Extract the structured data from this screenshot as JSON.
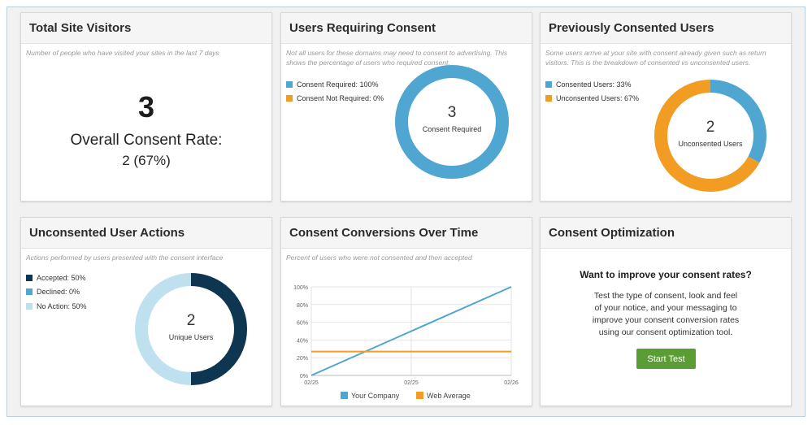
{
  "colors": {
    "blue": "#4fa6d0",
    "orange": "#f39c24",
    "navy": "#0f3650",
    "mid_blue": "#4fa6d0",
    "light_blue": "#bfe0ef",
    "green_button": "#5a9d35"
  },
  "visitors": {
    "title": "Total Site Visitors",
    "description": "Number of people who have visited your sites in the last 7 days",
    "count": "3",
    "rate_label": "Overall Consent Rate:",
    "rate_value": "2 (67%)"
  },
  "requiring": {
    "title": "Users Requiring Consent",
    "description": "Not all users for these domains may need to consent to advertising. This shows the percentage of users who required consent.",
    "legend": [
      {
        "label": "Consent Required: 100%",
        "color": "#4fa6d0"
      },
      {
        "label": "Consent Not Required: 0%",
        "color": "#f39c24"
      }
    ],
    "center_value": "3",
    "center_label": "Consent Required",
    "slices": [
      1.0,
      0.0
    ]
  },
  "previously": {
    "title": "Previously Consented Users",
    "description": "Some users arrive at your site with consent already given such as return visitors. This is the breakdown of consented vs unconsented users.",
    "legend": [
      {
        "label": "Consented Users: 33%",
        "color": "#4fa6d0"
      },
      {
        "label": "Unconsented Users: 67%",
        "color": "#f39c24"
      }
    ],
    "center_value": "2",
    "center_label": "Unconsented Users",
    "slices": [
      0.33,
      0.67
    ]
  },
  "actions": {
    "title": "Unconsented User Actions",
    "description": "Actions performed by users presented with the consent interface",
    "legend": [
      {
        "label": "Accepted: 50%",
        "color": "#0f3650"
      },
      {
        "label": "Declined: 0%",
        "color": "#4fa6d0"
      },
      {
        "label": "No Action: 50%",
        "color": "#bfe0ef"
      }
    ],
    "center_value": "2",
    "center_label": "Unique Users",
    "slices": [
      0.5,
      0.0,
      0.5
    ]
  },
  "conversions": {
    "title": "Consent Conversions Over Time",
    "description": "Percent of users who were not consented and then accepted"
  },
  "chart_data": {
    "type": "line",
    "x": [
      "02/25",
      "02/25",
      "02/26"
    ],
    "y_ticks": [
      "0%",
      "20%",
      "40%",
      "60%",
      "80%",
      "100%"
    ],
    "ylim": [
      0,
      100
    ],
    "grid": true,
    "legend_position": "bottom",
    "series": [
      {
        "name": "Your Company",
        "color": "#4fa6d0",
        "values": [
          0,
          50,
          100
        ]
      },
      {
        "name": "Web Average",
        "color": "#f39c24",
        "values": [
          27,
          27,
          27
        ]
      }
    ]
  },
  "optimization": {
    "title": "Consent Optimization",
    "heading": "Want to improve your consent rates?",
    "body_lines": [
      "Test the type of consent, look and feel",
      "of your notice, and your messaging to",
      "improve your consent conversion rates",
      "using our consent optimization tool."
    ],
    "button_label": "Start Test"
  }
}
